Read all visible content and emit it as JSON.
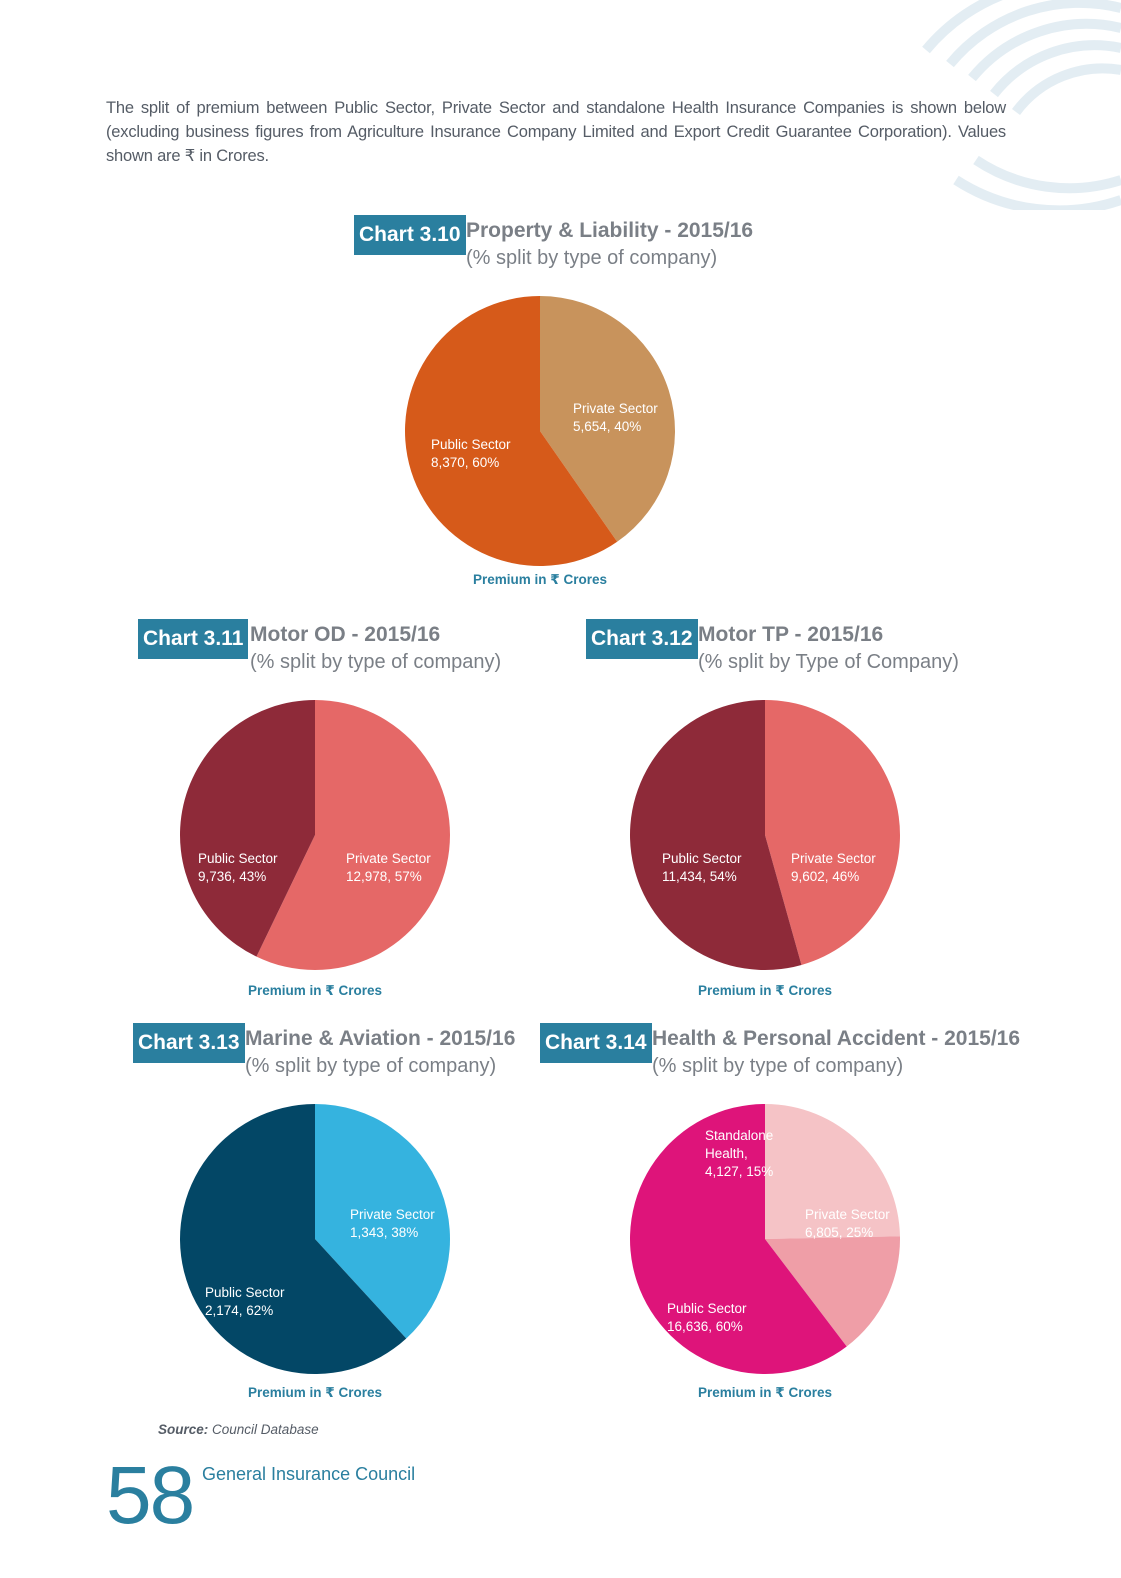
{
  "intro_text": "The split of premium between Public Sector, Private Sector and standalone Health Insurance Companies is shown below (excluding business figures from Agriculture Insurance Company Limited and Export Credit Guarantee Corporation). Values shown are ₹ in Crores.",
  "chart_data": [
    {
      "id": "Chart 3.10",
      "type": "pie",
      "title": "Property & Liability - 2015/16",
      "subtitle": "(% split by type of company)",
      "xlabel": "Premium in ₹ Crores",
      "slices": [
        {
          "name": "Public Sector",
          "value": 8370,
          "percent": 60,
          "label": "8,370, 60%",
          "color": "#d65a1a"
        },
        {
          "name": "Private Sector",
          "value": 5654,
          "percent": 40,
          "label": "5,654, 40%",
          "color": "#c8935c"
        }
      ]
    },
    {
      "id": "Chart 3.11",
      "type": "pie",
      "title": "Motor OD - 2015/16",
      "subtitle": "(% split by type of company)",
      "xlabel": "Premium in ₹ Crores",
      "slices": [
        {
          "name": "Public Sector",
          "value": 9736,
          "percent": 43,
          "label": "9,736, 43%",
          "color": "#8e2a39"
        },
        {
          "name": "Private Sector",
          "value": 12978,
          "percent": 57,
          "label": "12,978, 57%",
          "color": "#e56867"
        }
      ]
    },
    {
      "id": "Chart 3.12",
      "type": "pie",
      "title": "Motor TP - 2015/16",
      "subtitle": "(% split by Type of Company)",
      "xlabel": "Premium in ₹ Crores",
      "slices": [
        {
          "name": "Public Sector",
          "value": 11434,
          "percent": 54,
          "label": "11,434, 54%",
          "color": "#8e2a39"
        },
        {
          "name": "Private Sector",
          "value": 9602,
          "percent": 46,
          "label": "9,602, 46%",
          "color": "#e56867"
        }
      ]
    },
    {
      "id": "Chart 3.13",
      "type": "pie",
      "title": "Marine & Aviation - 2015/16",
      "subtitle": "(% split by type of company)",
      "xlabel": "Premium in ₹ Crores",
      "slices": [
        {
          "name": "Public Sector",
          "value": 2174,
          "percent": 62,
          "label": "2,174, 62%",
          "color": "#034766"
        },
        {
          "name": "Private Sector",
          "value": 1343,
          "percent": 38,
          "label": "1,343, 38%",
          "color": "#35b3df"
        }
      ]
    },
    {
      "id": "Chart 3.14",
      "type": "pie",
      "title": "Health & Personal Accident - 2015/16",
      "subtitle": "(% split by type of company)",
      "xlabel": "Premium in ₹ Crores",
      "slices": [
        {
          "name": "Public Sector",
          "value": 16636,
          "percent": 60,
          "label": "16,636, 60%",
          "color": "#de147a"
        },
        {
          "name": "Standalone Health,",
          "value": 4127,
          "percent": 15,
          "label": "4,127, 15%",
          "color": "#ef9ea7"
        },
        {
          "name": "Private Sector",
          "value": 6805,
          "percent": 25,
          "label": "6,805, 25%",
          "color": "#f5c3c6"
        }
      ]
    }
  ],
  "footer": {
    "source_label": "Source:",
    "source_text": "Council Database",
    "page_number": "58",
    "organization": "General Insurance Council"
  }
}
